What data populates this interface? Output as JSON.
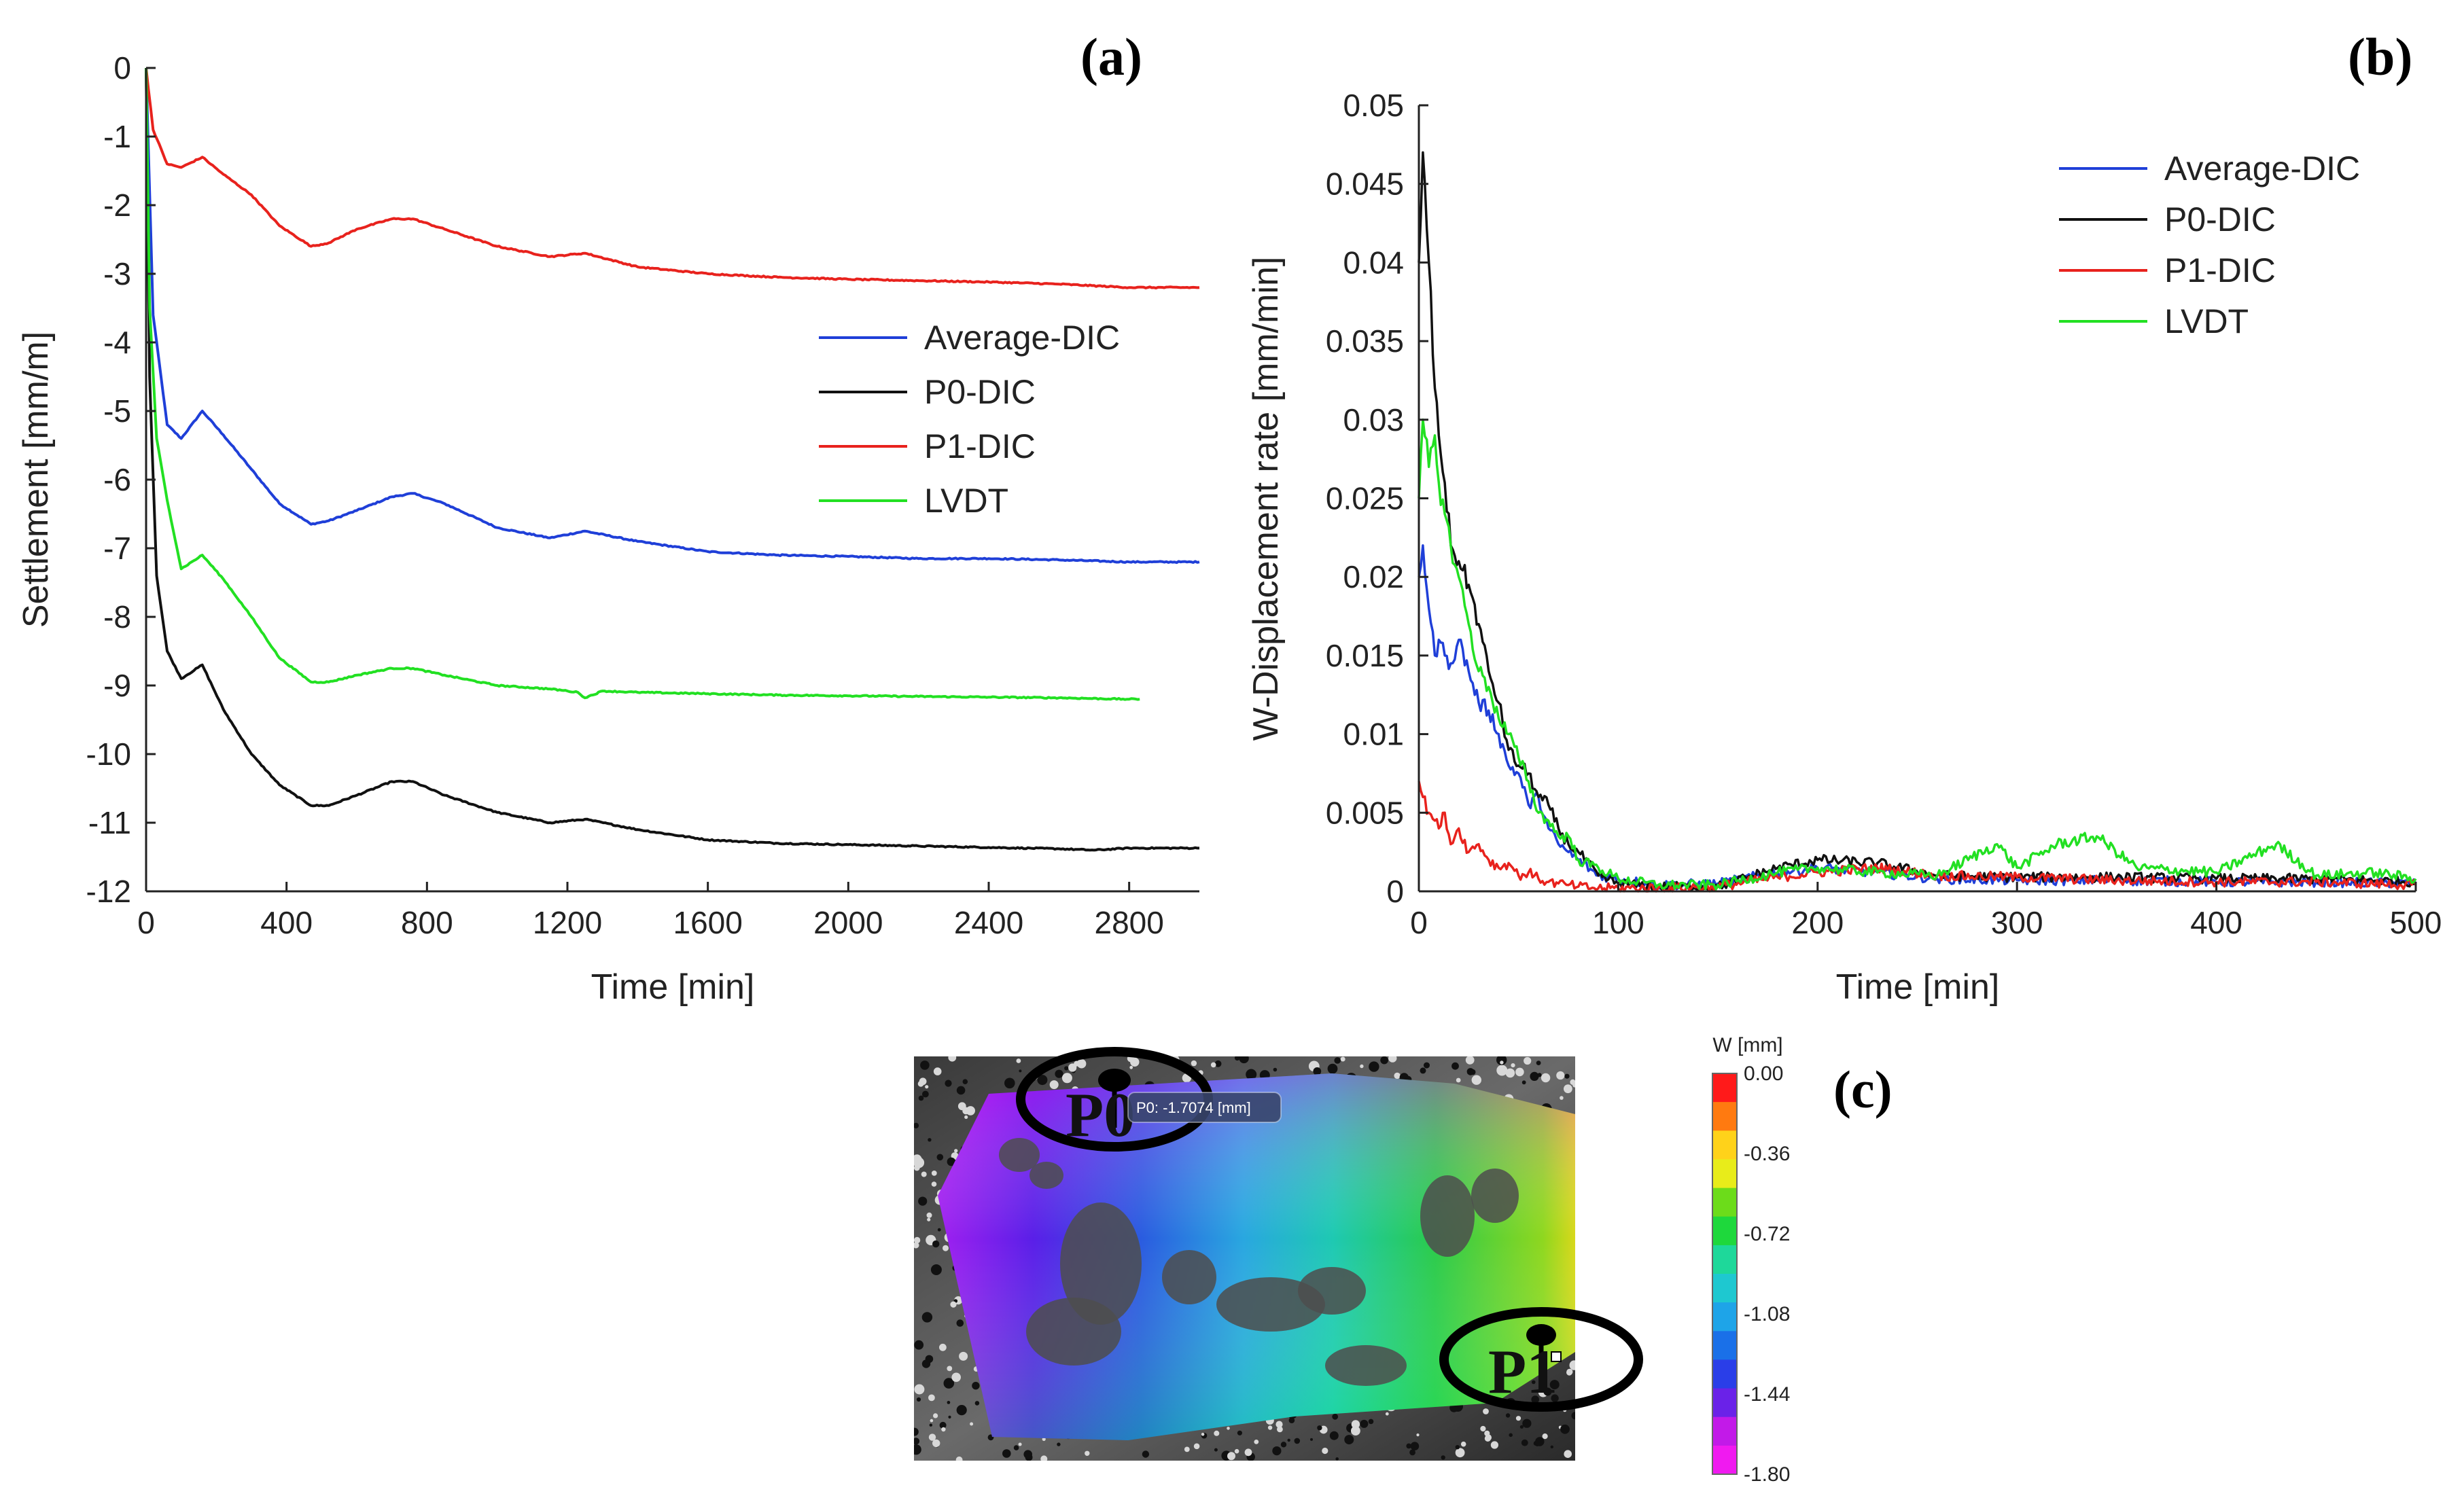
{
  "chart_data": [
    {
      "panel": "(a)",
      "type": "line",
      "title": "",
      "xlabel": "Time [min]",
      "ylabel": "Settlement [mm/m]",
      "xlim": [
        0,
        3000
      ],
      "ylim": [
        -12,
        0
      ],
      "xticks": [
        0,
        400,
        800,
        1200,
        1600,
        2000,
        2400,
        2800
      ],
      "xtick_labels": [
        "0",
        "400",
        "800",
        "1200",
        "1600",
        "2000",
        "2400",
        "2800"
      ],
      "yticks": [
        0,
        -1,
        -2,
        -3,
        -4,
        -5,
        -6,
        -7,
        -8,
        -9,
        -10,
        -11,
        -12
      ],
      "ytick_labels": [
        "0",
        "-1",
        "-2",
        "-3",
        "-4",
        "-5",
        "-6",
        "-7",
        "-8",
        "-9",
        "-10",
        "-11",
        "-12"
      ],
      "grid": false,
      "legend_position": "center-right",
      "series": [
        {
          "name": "Average-DIC",
          "color": "#1f3fd8",
          "x": [
            0,
            20,
            60,
            100,
            160,
            220,
            300,
            380,
            470,
            520,
            600,
            700,
            760,
            850,
            1000,
            1150,
            1250,
            1400,
            1600,
            1800,
            2000,
            2200,
            2400,
            2600,
            2800,
            3000
          ],
          "y": [
            0,
            -3.6,
            -5.2,
            -5.4,
            -5.0,
            -5.35,
            -5.85,
            -6.35,
            -6.65,
            -6.6,
            -6.45,
            -6.25,
            -6.2,
            -6.35,
            -6.7,
            -6.85,
            -6.75,
            -6.9,
            -7.05,
            -7.1,
            -7.12,
            -7.15,
            -7.15,
            -7.17,
            -7.2,
            -7.2
          ]
        },
        {
          "name": "P0-DIC",
          "color": "#111111",
          "x": [
            0,
            10,
            30,
            60,
            100,
            160,
            220,
            300,
            380,
            470,
            520,
            600,
            700,
            760,
            850,
            1000,
            1150,
            1250,
            1400,
            1600,
            1800,
            2000,
            2200,
            2400,
            2600,
            2700,
            2800,
            3000
          ],
          "y": [
            0,
            -4.5,
            -7.4,
            -8.5,
            -8.9,
            -8.7,
            -9.35,
            -10.0,
            -10.45,
            -10.75,
            -10.75,
            -10.6,
            -10.4,
            -10.4,
            -10.6,
            -10.85,
            -11.0,
            -10.95,
            -11.1,
            -11.25,
            -11.3,
            -11.32,
            -11.34,
            -11.36,
            -11.38,
            -11.4,
            -11.37,
            -11.37
          ]
        },
        {
          "name": "P1-DIC",
          "color": "#e8221d",
          "x": [
            0,
            20,
            60,
            100,
            160,
            220,
            300,
            380,
            470,
            520,
            600,
            700,
            760,
            850,
            1000,
            1150,
            1250,
            1400,
            1600,
            1800,
            2000,
            2200,
            2400,
            2600,
            2800,
            3000
          ],
          "y": [
            0,
            -0.9,
            -1.4,
            -1.45,
            -1.3,
            -1.55,
            -1.85,
            -2.3,
            -2.6,
            -2.55,
            -2.35,
            -2.2,
            -2.2,
            -2.35,
            -2.6,
            -2.75,
            -2.7,
            -2.9,
            -3.0,
            -3.05,
            -3.08,
            -3.1,
            -3.12,
            -3.15,
            -3.2,
            -3.2
          ]
        },
        {
          "name": "LVDT",
          "color": "#22e022",
          "x": [
            0,
            10,
            30,
            60,
            100,
            160,
            220,
            300,
            380,
            470,
            520,
            600,
            700,
            760,
            850,
            1000,
            1150,
            1200,
            1230,
            1250,
            1300,
            1400,
            1600,
            1800,
            2000,
            2200,
            2400,
            2600,
            2800,
            2830
          ],
          "y": [
            0,
            -3.5,
            -5.4,
            -6.3,
            -7.3,
            -7.1,
            -7.45,
            -8.0,
            -8.6,
            -8.95,
            -8.95,
            -8.85,
            -8.75,
            -8.75,
            -8.85,
            -9.0,
            -9.05,
            -9.08,
            -9.1,
            -9.18,
            -9.08,
            -9.1,
            -9.12,
            -9.14,
            -9.15,
            -9.16,
            -9.17,
            -9.18,
            -9.2,
            -9.2
          ]
        }
      ]
    },
    {
      "panel": "(b)",
      "type": "line",
      "title": "",
      "xlabel": "Time [min]",
      "ylabel": "W-Displacement rate [mm/min]",
      "xlim": [
        0,
        500
      ],
      "ylim": [
        0,
        0.05
      ],
      "xticks": [
        0,
        100,
        200,
        300,
        400,
        500
      ],
      "xtick_labels": [
        "0",
        "100",
        "200",
        "300",
        "400",
        "500"
      ],
      "yticks": [
        0,
        0.005,
        0.01,
        0.015,
        0.02,
        0.025,
        0.03,
        0.035,
        0.04,
        0.045,
        0.05
      ],
      "ytick_labels": [
        "0",
        "0.005",
        "0.01",
        "0.015",
        "0.02",
        "0.025",
        "0.03",
        "0.035",
        "0.04",
        "0.045",
        "0.05"
      ],
      "grid": false,
      "legend_position": "top-right",
      "series": [
        {
          "name": "Average-DIC",
          "color": "#1f3fd8",
          "x": [
            0,
            2,
            5,
            8,
            10,
            13,
            16,
            20,
            25,
            30,
            35,
            40,
            45,
            50,
            55,
            60,
            65,
            70,
            75,
            80,
            90,
            100,
            120,
            150,
            180,
            200,
            230,
            260,
            300,
            350,
            400,
            450,
            500
          ],
          "y": [
            0.02,
            0.022,
            0.018,
            0.015,
            0.016,
            0.015,
            0.0145,
            0.016,
            0.014,
            0.012,
            0.0115,
            0.01,
            0.008,
            0.0075,
            0.0055,
            0.006,
            0.004,
            0.003,
            0.0025,
            0.002,
            0.001,
            0.0008,
            0.0004,
            0.0005,
            0.0012,
            0.0015,
            0.0012,
            0.0008,
            0.0007,
            0.0007,
            0.0006,
            0.0006,
            0.0005
          ]
        },
        {
          "name": "P0-DIC",
          "color": "#111111",
          "x": [
            0,
            2,
            5,
            8,
            10,
            13,
            16,
            20,
            25,
            30,
            35,
            40,
            45,
            50,
            55,
            60,
            65,
            70,
            75,
            80,
            90,
            100,
            120,
            150,
            180,
            200,
            230,
            260,
            300,
            350,
            400,
            450,
            500
          ],
          "y": [
            0.04,
            0.047,
            0.04,
            0.032,
            0.029,
            0.026,
            0.022,
            0.021,
            0.0195,
            0.017,
            0.014,
            0.012,
            0.009,
            0.008,
            0.0075,
            0.006,
            0.0055,
            0.004,
            0.003,
            0.0025,
            0.001,
            0.0005,
            0.0003,
            0.0003,
            0.0015,
            0.002,
            0.0018,
            0.001,
            0.0009,
            0.0009,
            0.0008,
            0.0008,
            0.0006
          ]
        },
        {
          "name": "P1-DIC",
          "color": "#e8221d",
          "x": [
            0,
            2,
            5,
            8,
            10,
            13,
            16,
            20,
            25,
            30,
            35,
            40,
            45,
            50,
            55,
            60,
            65,
            70,
            75,
            80,
            90,
            100,
            120,
            150,
            180,
            200,
            230,
            260,
            300,
            350,
            400,
            450,
            500
          ],
          "y": [
            0.007,
            0.006,
            0.005,
            0.0045,
            0.004,
            0.005,
            0.003,
            0.004,
            0.0025,
            0.003,
            0.002,
            0.0015,
            0.0018,
            0.001,
            0.0012,
            0.0008,
            0.0006,
            0.0005,
            0.0004,
            0.0003,
            0.0002,
            0.0002,
            0.0002,
            0.0003,
            0.0009,
            0.0012,
            0.0015,
            0.001,
            0.0009,
            0.0007,
            0.0006,
            0.0006,
            0.0004
          ]
        },
        {
          "name": "LVDT",
          "color": "#22e022",
          "x": [
            0,
            2,
            5,
            8,
            10,
            13,
            16,
            20,
            25,
            30,
            35,
            40,
            45,
            50,
            55,
            60,
            65,
            70,
            75,
            80,
            90,
            100,
            120,
            150,
            180,
            200,
            230,
            260,
            290,
            300,
            320,
            340,
            360,
            400,
            430,
            450,
            480,
            500
          ],
          "y": [
            0.025,
            0.03,
            0.027,
            0.029,
            0.026,
            0.024,
            0.022,
            0.02,
            0.017,
            0.014,
            0.013,
            0.011,
            0.01,
            0.0085,
            0.007,
            0.005,
            0.0045,
            0.0035,
            0.0035,
            0.002,
            0.0015,
            0.0008,
            0.0004,
            0.0004,
            0.0012,
            0.0015,
            0.0012,
            0.001,
            0.003,
            0.0015,
            0.003,
            0.0035,
            0.0015,
            0.0012,
            0.003,
            0.001,
            0.0012,
            0.0008
          ]
        }
      ]
    },
    {
      "panel": "(c)",
      "type": "heatmap",
      "colorbar_title": "W [mm]",
      "colorbar_ticks": [
        "0.00",
        "-0.36",
        "-0.72",
        "-1.08",
        "-1.44",
        "-1.80"
      ],
      "colorbar_range": [
        -1.8,
        0.0
      ],
      "markers": [
        {
          "label": "P0",
          "tooltip": "P0: -1.7074 [mm]"
        },
        {
          "label": "P1"
        }
      ]
    }
  ]
}
